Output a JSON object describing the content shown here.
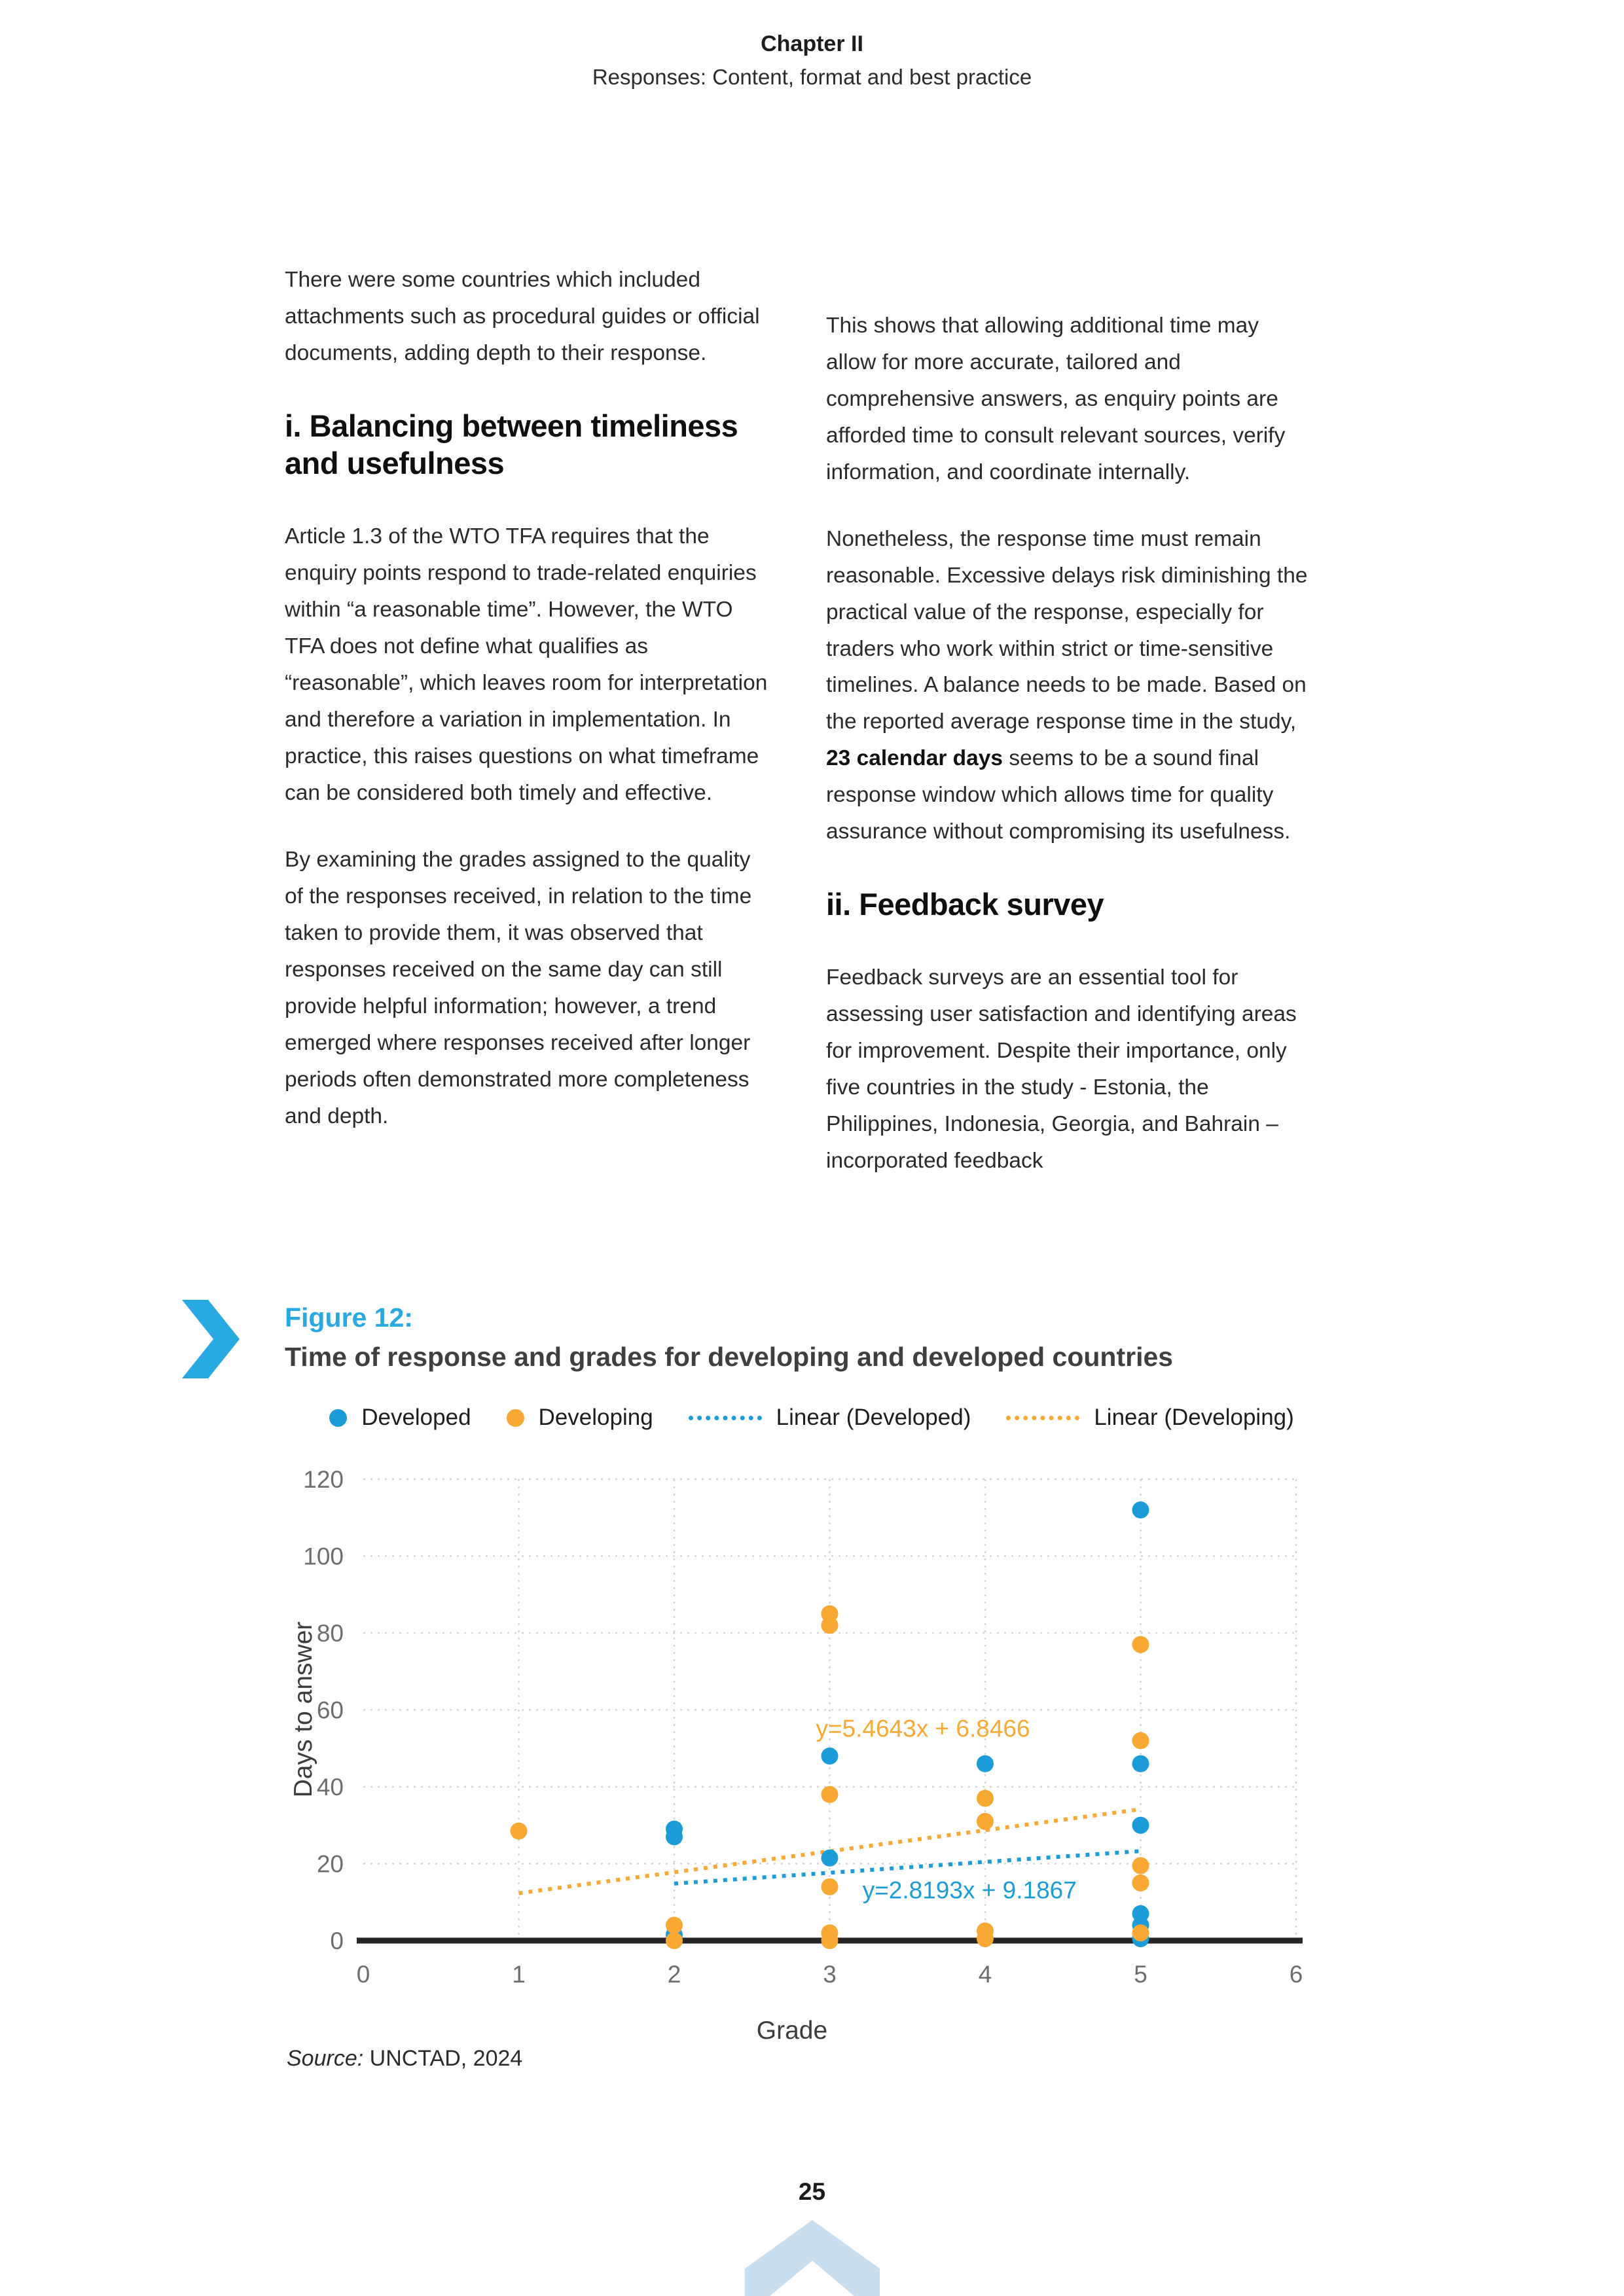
{
  "header": {
    "chapter": "Chapter II",
    "subtitle": "Responses: Content, format and best practice"
  },
  "left_column": {
    "p1": "There were some countries which included attachments such as procedural guides or official documents, adding depth to their response.",
    "heading": "i. Balancing between timeliness and usefulness",
    "p2": "Article 1.3 of the WTO TFA requires that the enquiry points respond to trade-related enquiries within “a reasonable time”. However, the WTO TFA does not define what qualifies as “reasonable”, which leaves room for interpretation and therefore a variation in implementation. In practice, this raises questions on what timeframe can be considered both timely and effective.",
    "p3": "By examining the grades assigned to the quality of the responses received, in relation to the time taken to provide them, it was observed that responses received on the same day can still provide helpful information; however, a trend emerged where responses received after longer periods often demonstrated more completeness and depth."
  },
  "right_column": {
    "p1": "This shows that allowing additional time may allow for more accurate, tailored and comprehensive answers, as enquiry points are afforded time to consult relevant sources, verify information, and coordinate internally.",
    "p2_before": "Nonetheless, the response time must remain reasonable. Excessive delays risk diminishing the practical value of the response, especially for traders who work within strict or time-sensitive timelines. A balance needs to be made. Based on the reported average response time in the study, ",
    "p2_bold": "23 calendar days",
    "p2_after": " seems to be a sound final response window which allows time for quality assurance without compromising its usefulness.",
    "heading": "ii. Feedback survey",
    "p3": "Feedback surveys are an essential tool for assessing user satisfaction and identifying areas for improvement. Despite their importance, only five countries in the study - Estonia, the Philippines, Indonesia, Georgia, and Bahrain – incorporated feedback"
  },
  "figure": {
    "label": "Figure 12:",
    "title": "Time of response and grades for developing and developed countries"
  },
  "chart_data": {
    "type": "scatter",
    "title": "Time of response and grades for developing and developed countries",
    "xlabel": "Grade",
    "ylabel": "Days to answer",
    "xlim": [
      0,
      6
    ],
    "ylim": [
      0,
      120
    ],
    "x_ticks": [
      0,
      1,
      2,
      3,
      4,
      5,
      6
    ],
    "y_ticks": [
      0,
      20,
      40,
      60,
      80,
      100,
      120
    ],
    "grid": true,
    "legend_position": "top",
    "legend": [
      "Developed",
      "Developing",
      "Linear (Developed)",
      "Linear (Developing)"
    ],
    "series": [
      {
        "name": "Developed",
        "color": "#1B9CD8",
        "points": [
          [
            2,
            29
          ],
          [
            2,
            27
          ],
          [
            2,
            1.5
          ],
          [
            3,
            48
          ],
          [
            3,
            21.5
          ],
          [
            4,
            46
          ],
          [
            5,
            112
          ],
          [
            5,
            46
          ],
          [
            5,
            30
          ],
          [
            5,
            7
          ],
          [
            5,
            4
          ],
          [
            5,
            0.5
          ]
        ]
      },
      {
        "name": "Developing",
        "color": "#F8A833",
        "points": [
          [
            1,
            28.5
          ],
          [
            2,
            4
          ],
          [
            2,
            0
          ],
          [
            3,
            85
          ],
          [
            3,
            82
          ],
          [
            3,
            38
          ],
          [
            3,
            14
          ],
          [
            3,
            2
          ],
          [
            3,
            0
          ],
          [
            4,
            37
          ],
          [
            4,
            31
          ],
          [
            4,
            2.5
          ],
          [
            4,
            0.5
          ],
          [
            5,
            77
          ],
          [
            5,
            52
          ],
          [
            5,
            19.5
          ],
          [
            5,
            15
          ],
          [
            5,
            2
          ]
        ]
      }
    ],
    "trendlines": [
      {
        "name": "Linear (Developing)",
        "color": "#F8A833",
        "equation": "y=5.4643x + 6.8466",
        "slope": 5.4643,
        "intercept": 6.8466,
        "x_start": 1,
        "x_end": 5,
        "label_x": 3.6,
        "label_y": 53
      },
      {
        "name": "Linear (Developed)",
        "color": "#1B9CD8",
        "equation": "y=2.8193x + 9.1867",
        "slope": 2.8193,
        "intercept": 9.1867,
        "x_start": 2,
        "x_end": 5,
        "label_x": 3.9,
        "label_y": 11
      }
    ]
  },
  "source": {
    "label": "Source:",
    "value": " UNCTAD, 2024"
  },
  "footer": {
    "page_number": "25"
  },
  "colors": {
    "accent_blue": "#29A9E1",
    "chart_blue": "#1B9CD8",
    "chart_orange": "#F8A833",
    "logo_pale_blue": "#C8DFF2"
  },
  "icons": {
    "figure_marker": "chevron-right",
    "footer_logo": "chevron-up"
  }
}
